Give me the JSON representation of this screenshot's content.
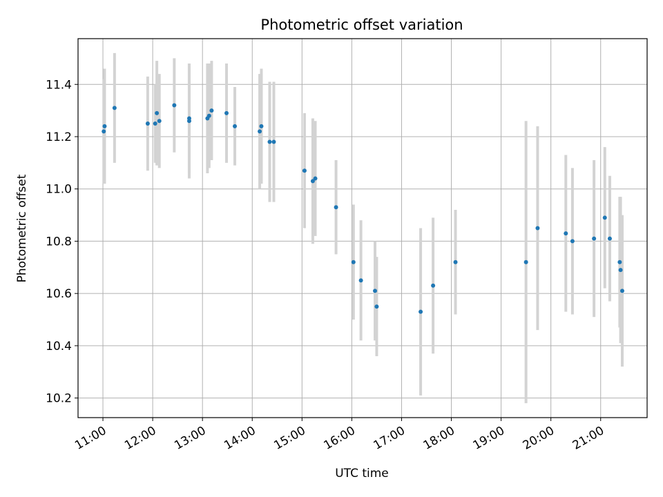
{
  "chart_data": {
    "type": "scatter",
    "title": "Photometric offset variation",
    "xlabel": "UTC time",
    "ylabel": "Photometric offset",
    "grid": true,
    "legend": "none",
    "xlim": [
      "10:30",
      "21:56"
    ],
    "ylim": [
      10.125,
      11.575
    ],
    "x_ticks": [
      "11:00",
      "12:00",
      "13:00",
      "14:00",
      "15:00",
      "16:00",
      "17:00",
      "18:00",
      "19:00",
      "20:00",
      "21:00"
    ],
    "y_ticks": [
      "10.2",
      "10.4",
      "10.6",
      "10.8",
      "11.0",
      "11.2",
      "11.4"
    ],
    "colors": {
      "points": "#1f77b4",
      "errorbars": "#d3d3d3",
      "grid": "#b0b0b0"
    },
    "points": [
      {
        "x": "11:01",
        "y": 11.22,
        "err": 0.2
      },
      {
        "x": "11:02",
        "y": 11.24,
        "err": 0.22
      },
      {
        "x": "11:14",
        "y": 11.31,
        "err": 0.21
      },
      {
        "x": "11:54",
        "y": 11.25,
        "err": 0.18
      },
      {
        "x": "12:03",
        "y": 11.25,
        "err": 0.15
      },
      {
        "x": "12:05",
        "y": 11.29,
        "err": 0.2
      },
      {
        "x": "12:08",
        "y": 11.26,
        "err": 0.18
      },
      {
        "x": "12:26",
        "y": 11.32,
        "err": 0.18
      },
      {
        "x": "12:44",
        "y": 11.27,
        "err": 0.21
      },
      {
        "x": "12:44",
        "y": 11.26,
        "err": 0.22
      },
      {
        "x": "13:06",
        "y": 11.27,
        "err": 0.21
      },
      {
        "x": "13:08",
        "y": 11.28,
        "err": 0.2
      },
      {
        "x": "13:11",
        "y": 11.3,
        "err": 0.19
      },
      {
        "x": "13:29",
        "y": 11.29,
        "err": 0.19
      },
      {
        "x": "13:39",
        "y": 11.24,
        "err": 0.15
      },
      {
        "x": "14:09",
        "y": 11.22,
        "err": 0.22
      },
      {
        "x": "14:11",
        "y": 11.24,
        "err": 0.22
      },
      {
        "x": "14:21",
        "y": 11.18,
        "err": 0.23
      },
      {
        "x": "14:26",
        "y": 11.18,
        "err": 0.23
      },
      {
        "x": "15:03",
        "y": 11.07,
        "err": 0.22
      },
      {
        "x": "15:13",
        "y": 11.03,
        "err": 0.24
      },
      {
        "x": "15:16",
        "y": 11.04,
        "err": 0.22
      },
      {
        "x": "15:41",
        "y": 10.93,
        "err": 0.18
      },
      {
        "x": "16:02",
        "y": 10.72,
        "err": 0.22
      },
      {
        "x": "16:11",
        "y": 10.65,
        "err": 0.23
      },
      {
        "x": "16:28",
        "y": 10.61,
        "err": 0.19
      },
      {
        "x": "16:30",
        "y": 10.55,
        "err": 0.19
      },
      {
        "x": "17:23",
        "y": 10.53,
        "err": 0.32
      },
      {
        "x": "17:38",
        "y": 10.63,
        "err": 0.26
      },
      {
        "x": "18:05",
        "y": 10.72,
        "err": 0.2
      },
      {
        "x": "19:30",
        "y": 10.72,
        "err": 0.54
      },
      {
        "x": "19:44",
        "y": 10.85,
        "err": 0.39
      },
      {
        "x": "20:18",
        "y": 10.83,
        "err": 0.3
      },
      {
        "x": "20:26",
        "y": 10.8,
        "err": 0.28
      },
      {
        "x": "20:52",
        "y": 10.81,
        "err": 0.3
      },
      {
        "x": "21:05",
        "y": 10.89,
        "err": 0.27
      },
      {
        "x": "21:11",
        "y": 10.81,
        "err": 0.24
      },
      {
        "x": "21:23",
        "y": 10.72,
        "err": 0.25
      },
      {
        "x": "21:24",
        "y": 10.69,
        "err": 0.28
      },
      {
        "x": "21:26",
        "y": 10.61,
        "err": 0.29
      }
    ]
  }
}
